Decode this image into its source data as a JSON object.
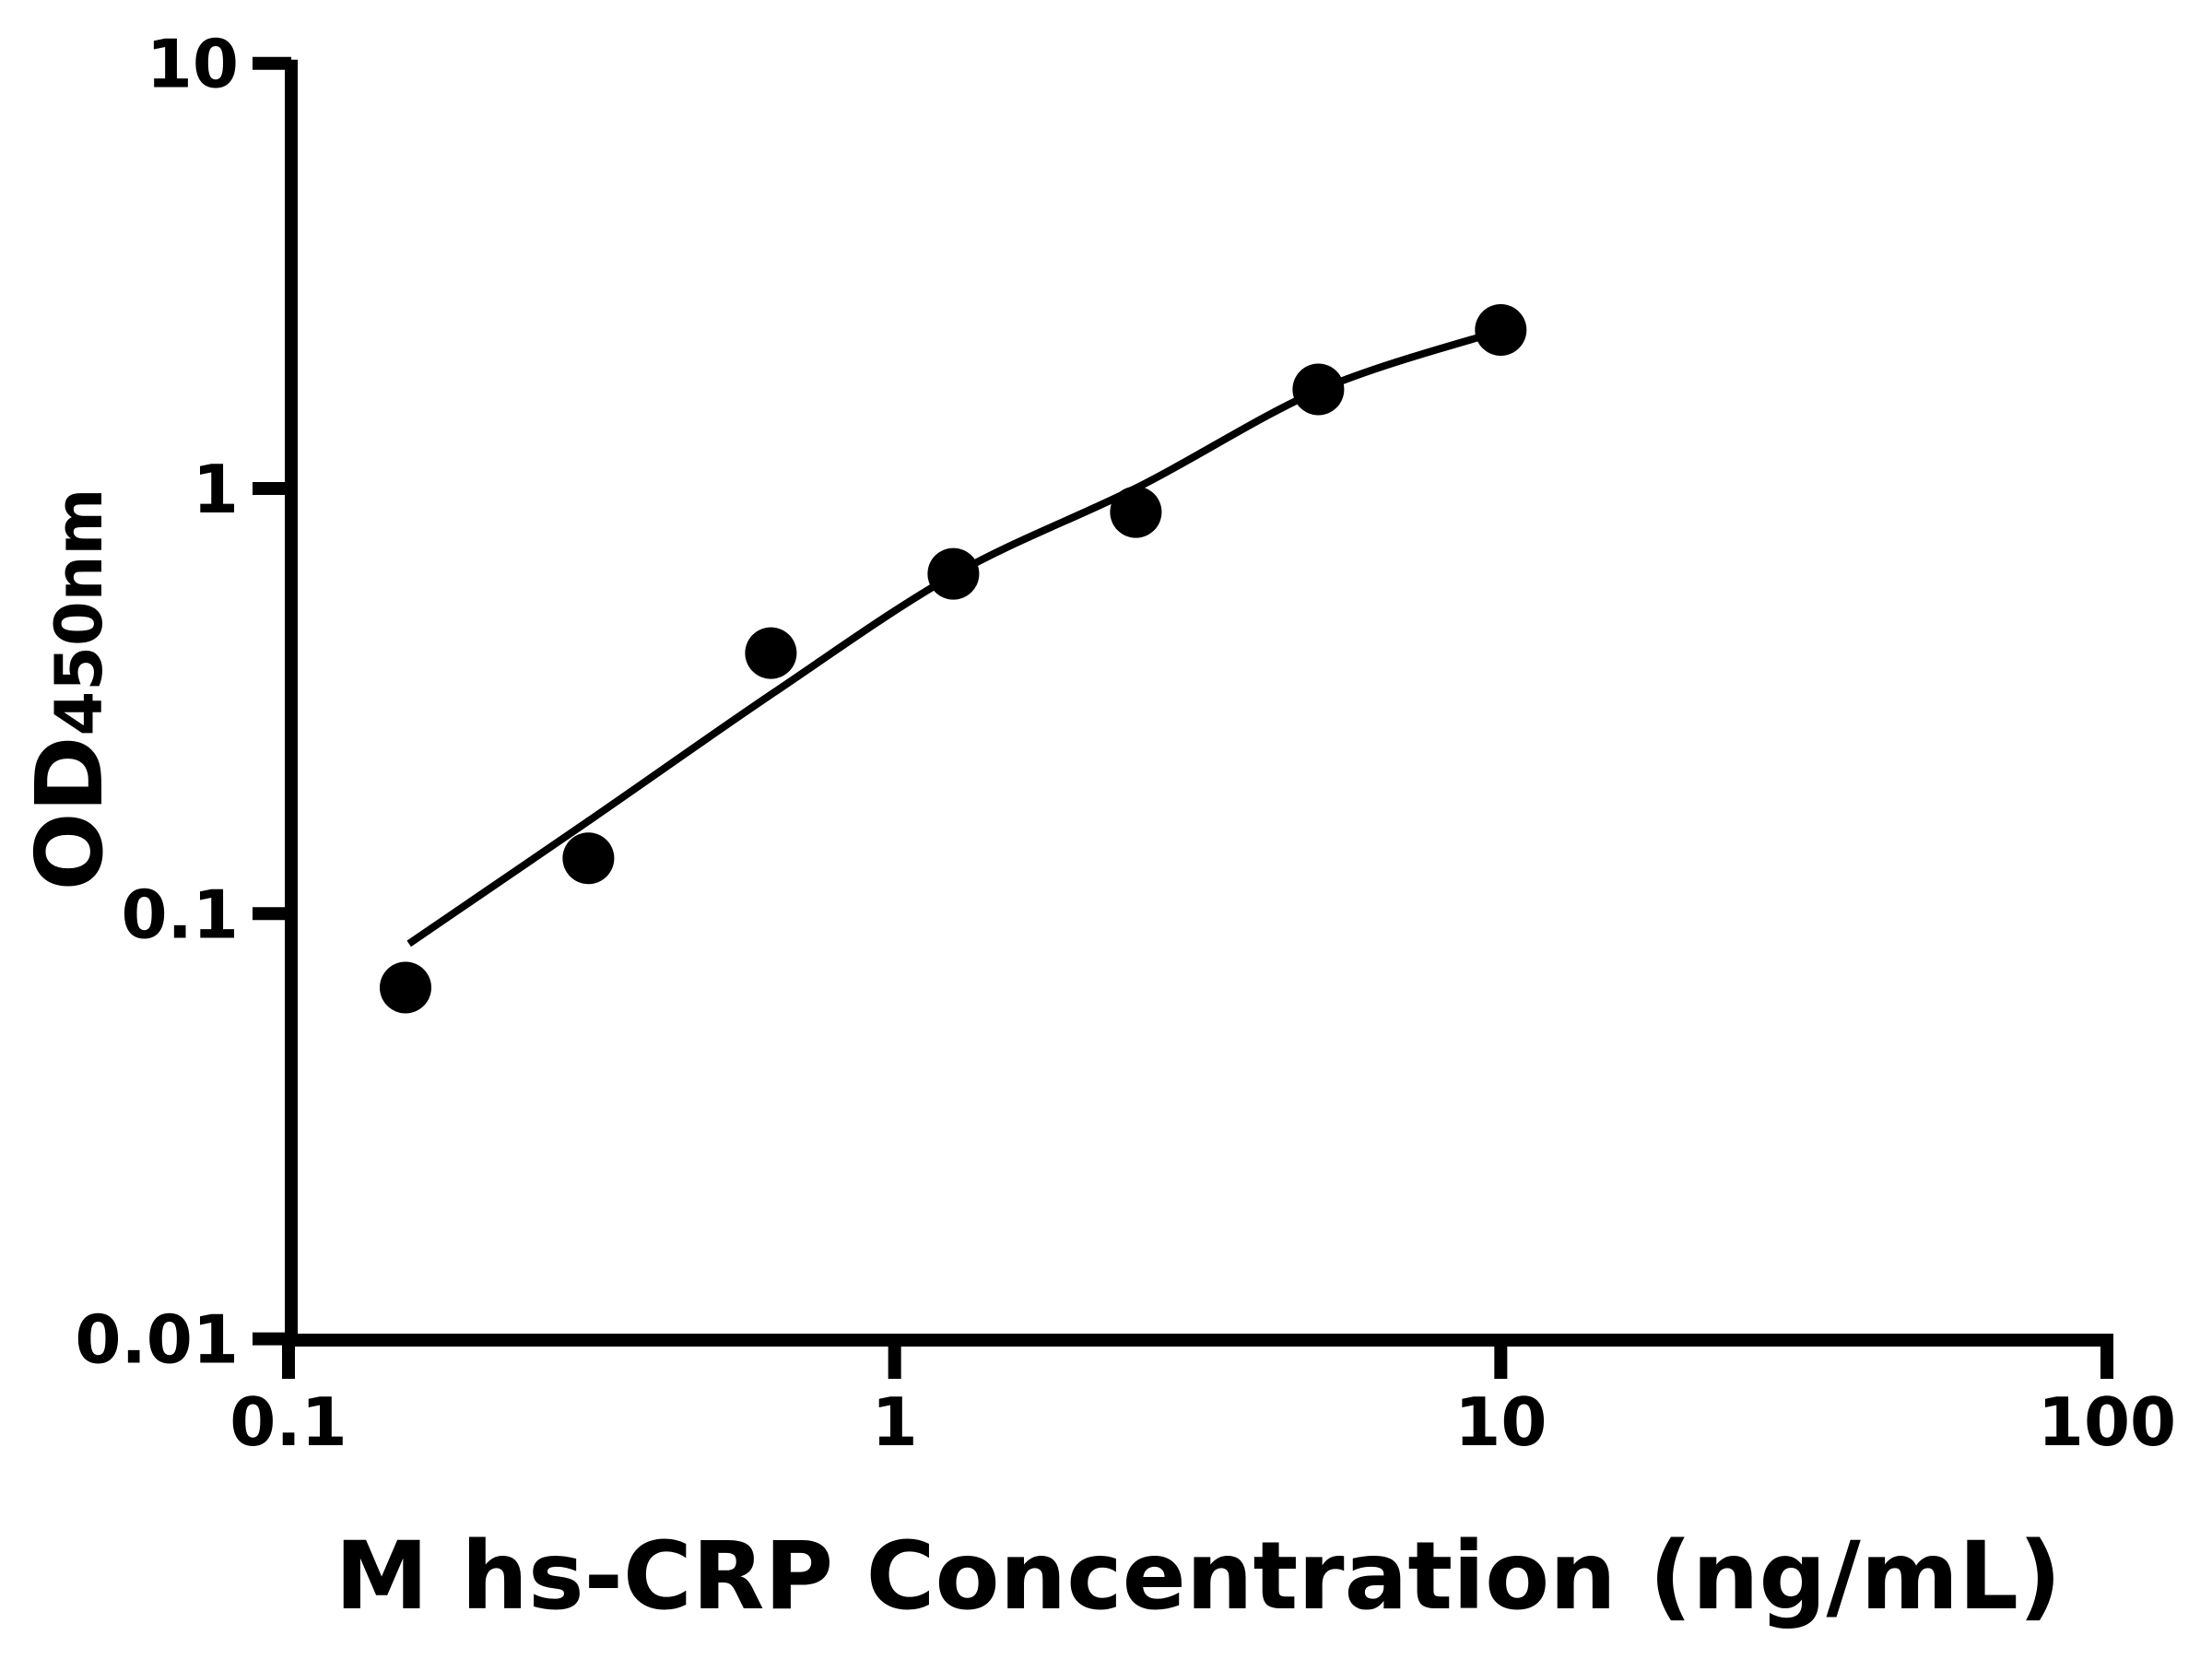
{
  "chart_data": {
    "type": "scatter",
    "title": "",
    "xlabel": "M hs-CRP Concentration (ng/mL)",
    "ylabel_main": "OD",
    "ylabel_sub": "450nm",
    "x_scale": "log",
    "y_scale": "log",
    "xlim": [
      0.1,
      100
    ],
    "ylim": [
      0.01,
      10
    ],
    "x_ticks": [
      0.1,
      1,
      10,
      100
    ],
    "x_tick_labels": [
      "0.1",
      "1",
      "10",
      "100"
    ],
    "y_ticks": [
      10,
      1,
      0.1,
      0.01
    ],
    "y_tick_labels": [
      "10",
      "1",
      "0.1",
      "0.01"
    ],
    "grid": false,
    "legend": "none",
    "colors": {
      "background": "#ffffff",
      "axis": "#000000",
      "points": "#000000",
      "curve": "#000000",
      "text": "#000000"
    },
    "series": [
      {
        "name": "standard-points",
        "type": "scatter",
        "points": [
          [
            0.156,
            0.067
          ],
          [
            0.3125,
            0.135
          ],
          [
            0.625,
            0.41
          ],
          [
            1.25,
            0.63
          ],
          [
            2.5,
            0.88
          ],
          [
            5,
            1.71
          ],
          [
            10,
            2.36
          ]
        ]
      },
      {
        "name": "fit-curve",
        "type": "line",
        "points": [
          [
            0.158,
            0.085
          ],
          [
            0.318,
            0.168
          ],
          [
            0.63,
            0.33
          ],
          [
            1.26,
            0.63
          ],
          [
            2.53,
            1.01
          ],
          [
            5.05,
            1.71
          ],
          [
            10.1,
            2.36
          ]
        ]
      }
    ]
  }
}
